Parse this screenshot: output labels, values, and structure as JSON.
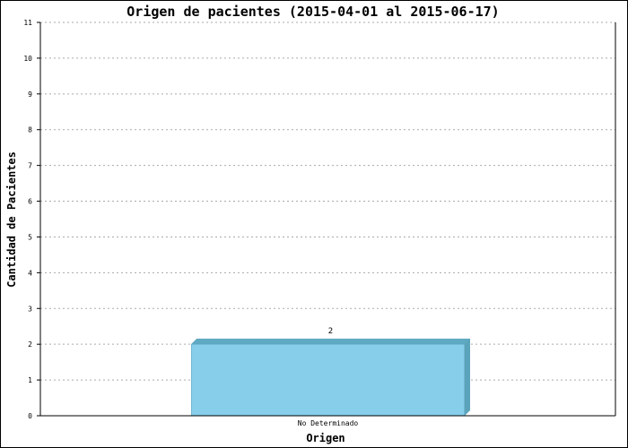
{
  "chart_data": {
    "type": "bar",
    "title": "Origen de pacientes  (2015-04-01 al 2015-06-17)",
    "xlabel": "Origen",
    "ylabel": "Cantidad de Pacientes",
    "categories": [
      "No Determinado"
    ],
    "values": [
      2
    ],
    "data_labels": [
      "2"
    ],
    "ylim": [
      0,
      11
    ],
    "yticks": [
      0,
      1,
      2,
      3,
      4,
      5,
      6,
      7,
      8,
      9,
      10,
      11
    ],
    "grid": true,
    "legend": "none",
    "bar_style": "3d",
    "colors": {
      "bar_face": "#87ceeb",
      "bar_side": "#5ba3ba",
      "bar_top": "#5faac3",
      "grid": "#aaaaaa",
      "axis": "#000000",
      "text": "#000000"
    }
  }
}
